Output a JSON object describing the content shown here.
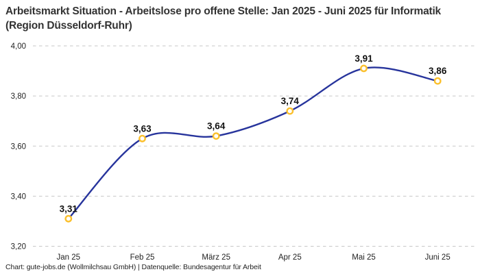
{
  "title": "Arbeitsmarkt Situation - Arbeitslose pro offene Stelle: Jan 2025 - Juni 2025 für Informatik (Region Düsseldorf-Ruhr)",
  "footer": "Chart: gute-jobs.de (Wollmilchsau GmbH) | Datenquelle: Bundesagentur für Arbeit",
  "chart_data": {
    "type": "line",
    "title": "Arbeitsmarkt Situation - Arbeitslose pro offene Stelle: Jan 2025 - Juni 2025 für Informatik (Region Düsseldorf-Ruhr)",
    "categories": [
      "Jan 25",
      "Feb 25",
      "März 25",
      "Apr 25",
      "Mai 25",
      "Juni 25"
    ],
    "values": [
      3.31,
      3.63,
      3.64,
      3.74,
      3.91,
      3.86
    ],
    "value_labels": [
      "3,31",
      "3,63",
      "3,64",
      "3,74",
      "3,91",
      "3,86"
    ],
    "xlabel": "",
    "ylabel": "",
    "ylim": [
      3.2,
      4.0
    ],
    "ytick_values": [
      4.0,
      3.8,
      3.6,
      3.4,
      3.2
    ],
    "ytick_labels": [
      "4,00",
      "3,80",
      "3,60",
      "3,40",
      "3,20"
    ],
    "grid": "horizontal-dashed",
    "legend": "none",
    "smooth": true,
    "colors": {
      "line": "#27349c",
      "marker_ring": "#fbc02d",
      "marker_fill": "#ffffff",
      "grid": "#c7c7c7",
      "tick_text": "#222222",
      "value_label_text": "#111111"
    }
  }
}
